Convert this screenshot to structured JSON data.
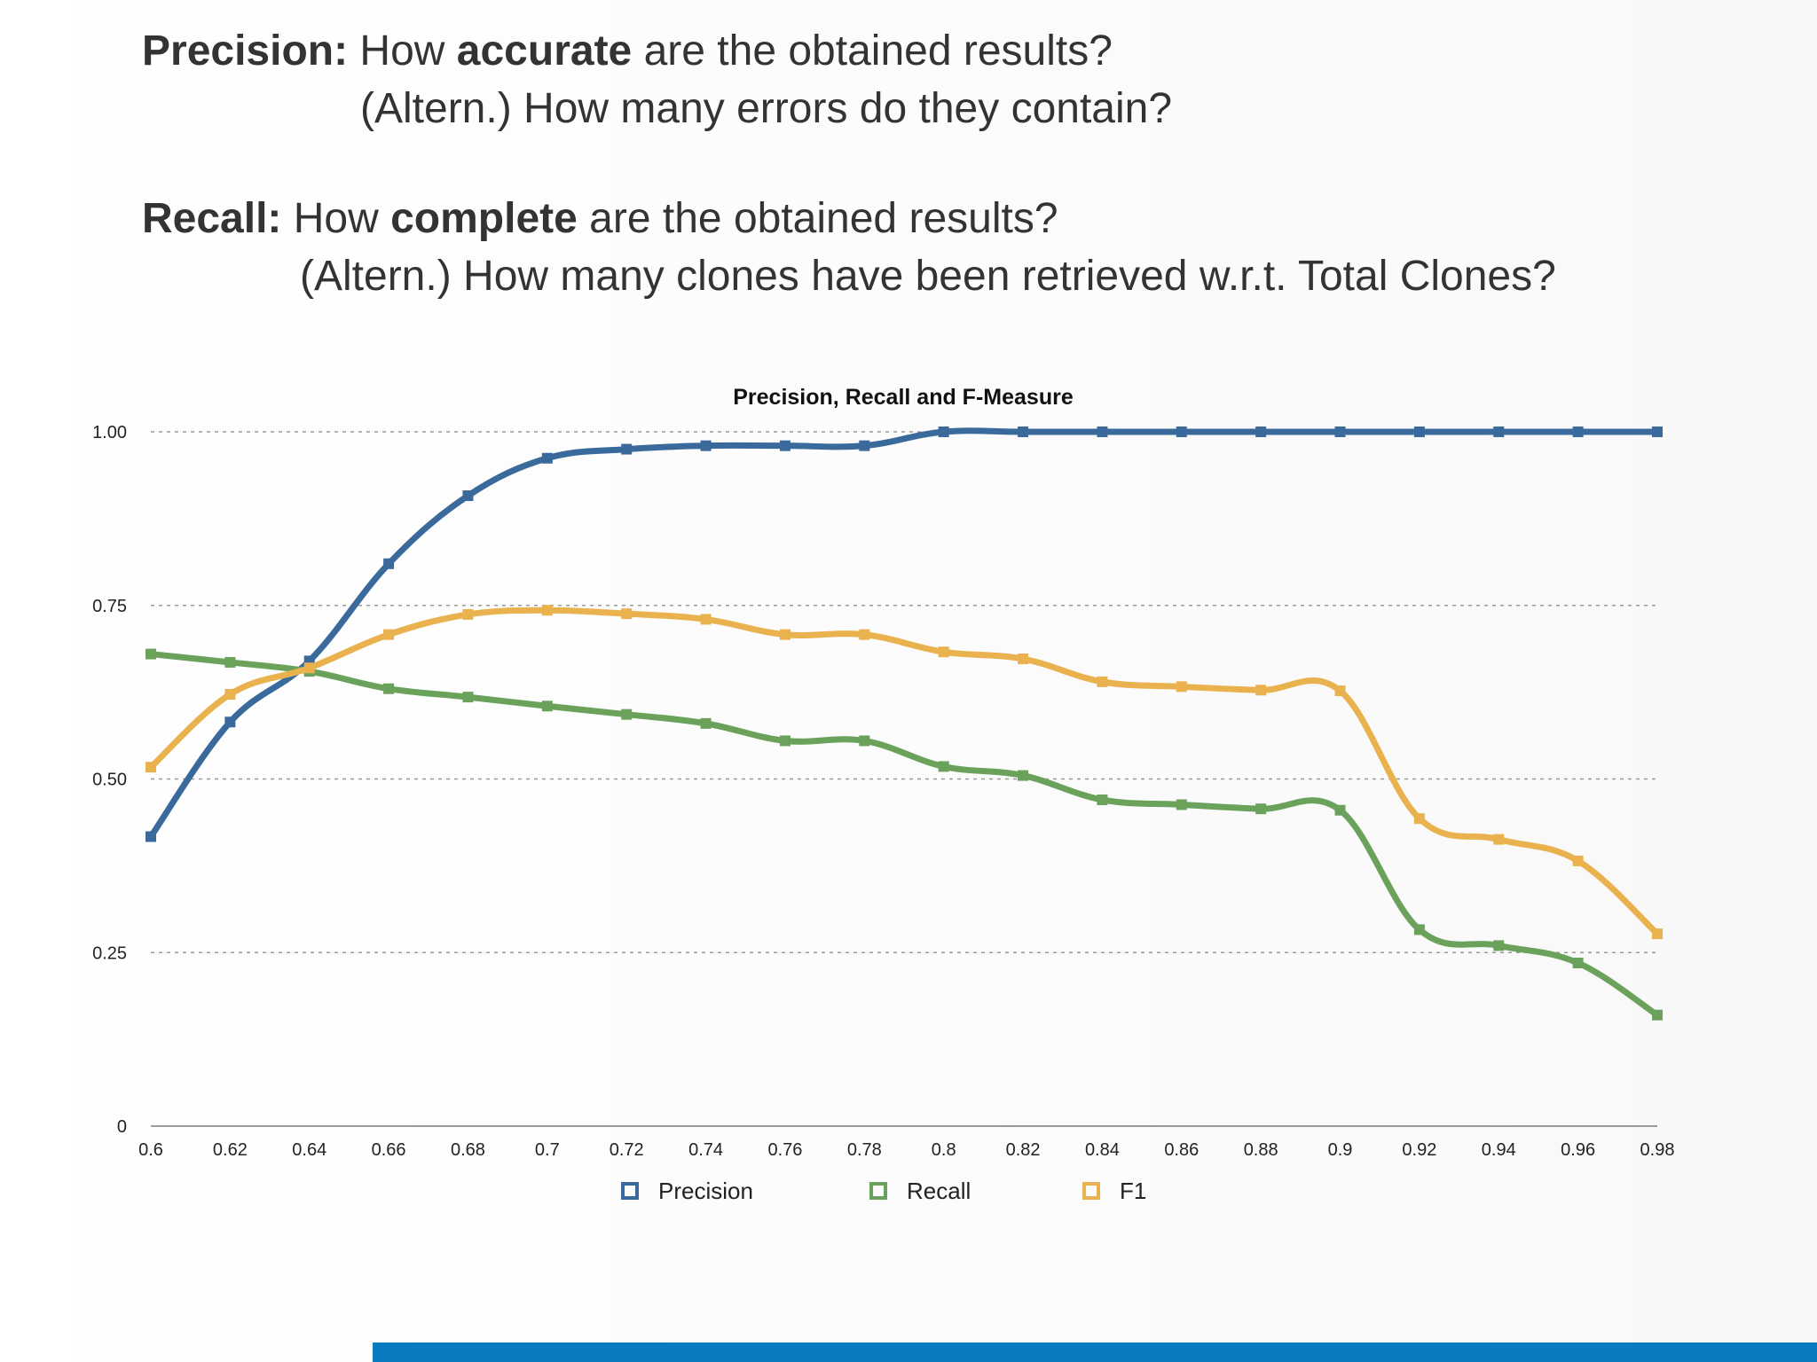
{
  "text": {
    "precision_label": "Precision:",
    "precision_pre": " How ",
    "precision_key": "accurate",
    "precision_post": " are the obtained results?",
    "precision_alt": "(Altern.) How many errors do they contain?",
    "recall_label": "Recall:",
    "recall_pre": " How ",
    "recall_key": "complete",
    "recall_post": " are the obtained results?",
    "recall_alt": "(Altern.) How many clones have been retrieved w.r.t. Total Clones?"
  },
  "chart_data": {
    "type": "line",
    "title": "Precision, Recall and F-Measure",
    "x": [
      0.6,
      0.62,
      0.64,
      0.66,
      0.68,
      0.7,
      0.72,
      0.74,
      0.76,
      0.78,
      0.8,
      0.82,
      0.84,
      0.86,
      0.88,
      0.9,
      0.92,
      0.94,
      0.96,
      0.98
    ],
    "x_tick_labels": [
      "0.6",
      "0.62",
      "0.64",
      "0.66",
      "0.68",
      "0.7",
      "0.72",
      "0.74",
      "0.76",
      "0.78",
      "0.8",
      "0.82",
      "0.84",
      "0.86",
      "0.88",
      "0.9",
      "0.92",
      "0.94",
      "0.96",
      "0.98"
    ],
    "y_ticks": [
      0,
      0.25,
      0.5,
      0.75,
      1.0
    ],
    "y_tick_labels": [
      "0",
      "0.25",
      "0.50",
      "0.75",
      "1.00"
    ],
    "ylim": [
      0,
      1
    ],
    "grid": "horizontal-dashed",
    "legend_position": "bottom",
    "series": [
      {
        "name": "Precision",
        "color": "#3a6a9c",
        "values": [
          0.417,
          0.582,
          0.67,
          0.81,
          0.908,
          0.962,
          0.975,
          0.98,
          0.98,
          0.98,
          1.0,
          1.0,
          1.0,
          1.0,
          1.0,
          1.0,
          1.0,
          1.0,
          1.0,
          1.0
        ]
      },
      {
        "name": "Recall",
        "color": "#6aa25b",
        "values": [
          0.68,
          0.668,
          0.655,
          0.63,
          0.618,
          0.605,
          0.593,
          0.58,
          0.555,
          0.555,
          0.518,
          0.505,
          0.47,
          0.463,
          0.457,
          0.455,
          0.283,
          0.26,
          0.235,
          0.16
        ]
      },
      {
        "name": "F1",
        "color": "#eab24f",
        "values": [
          0.517,
          0.622,
          0.66,
          0.708,
          0.737,
          0.743,
          0.738,
          0.73,
          0.708,
          0.708,
          0.683,
          0.673,
          0.64,
          0.633,
          0.628,
          0.627,
          0.443,
          0.413,
          0.382,
          0.277
        ]
      }
    ]
  }
}
